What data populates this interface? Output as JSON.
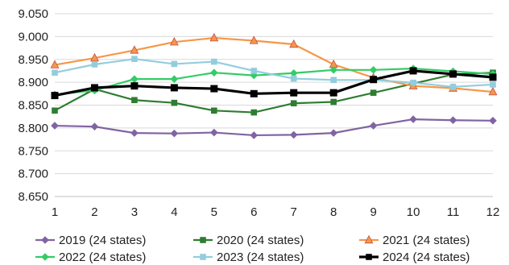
{
  "chart_data": {
    "type": "line",
    "x": [
      1,
      2,
      3,
      4,
      5,
      6,
      7,
      8,
      9,
      10,
      11,
      12
    ],
    "xlim": [
      1,
      12
    ],
    "ylim": [
      8.65,
      9.05
    ],
    "yticks": [
      "8.650",
      "8.700",
      "8.750",
      "8.800",
      "8.850",
      "8.900",
      "8.950",
      "9.000",
      "9.050"
    ],
    "xticks": [
      "1",
      "2",
      "3",
      "4",
      "5",
      "6",
      "7",
      "8",
      "9",
      "10",
      "11",
      "12"
    ],
    "grid": true,
    "legend_position": "bottom",
    "series": [
      {
        "name": "2019 (24 states)",
        "color": "#8064a2",
        "marker": "diamond",
        "values": [
          8.805,
          8.803,
          8.789,
          8.788,
          8.79,
          8.784,
          8.785,
          8.789,
          8.805,
          8.819,
          8.817,
          8.816
        ]
      },
      {
        "name": "2020 (24 states)",
        "color": "#2e7d32",
        "marker": "square",
        "values": [
          8.838,
          8.885,
          8.861,
          8.855,
          8.838,
          8.834,
          8.854,
          8.857,
          8.877,
          8.897,
          8.917,
          8.921
        ]
      },
      {
        "name": "2021 (24 states)",
        "color": "#f79646",
        "marker": "triangle",
        "values": [
          8.938,
          8.953,
          8.97,
          8.988,
          8.997,
          8.991,
          8.983,
          8.939,
          8.91,
          8.892,
          8.887,
          8.879
        ]
      },
      {
        "name": "2022 (24 states)",
        "color": "#33cc66",
        "marker": "diamond",
        "values": [
          8.873,
          8.882,
          8.907,
          8.907,
          8.921,
          8.915,
          8.92,
          8.927,
          8.927,
          8.93,
          8.924,
          8.918
        ]
      },
      {
        "name": "2023 (24 states)",
        "color": "#93cddd",
        "marker": "square",
        "values": [
          8.921,
          8.939,
          8.951,
          8.94,
          8.945,
          8.925,
          8.908,
          8.905,
          8.905,
          8.899,
          8.89,
          8.895
        ]
      },
      {
        "name": "2024 (24 states)",
        "color": "#000000",
        "marker": "square",
        "values": [
          8.871,
          8.888,
          8.892,
          8.888,
          8.886,
          8.875,
          8.877,
          8.877,
          8.906,
          8.925,
          8.918,
          8.911
        ]
      }
    ]
  }
}
